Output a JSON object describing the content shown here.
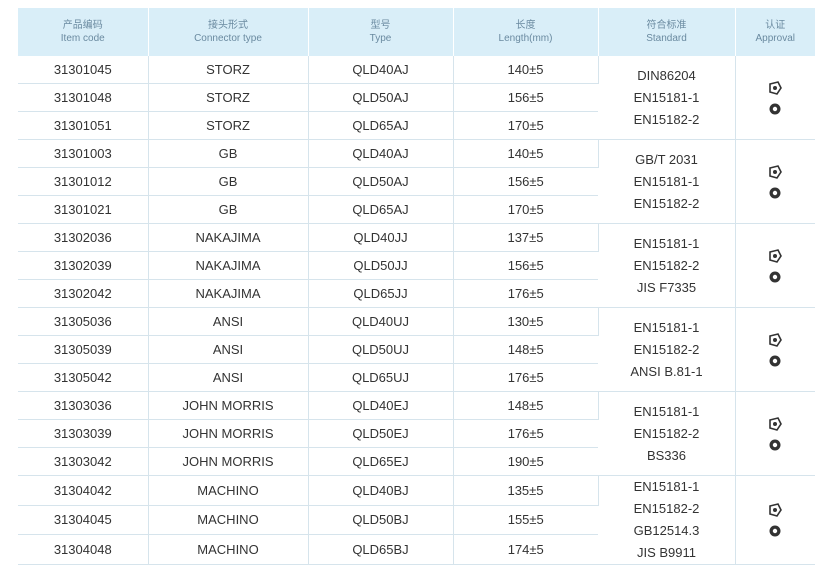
{
  "table": {
    "header": [
      {
        "zh": "产品编码",
        "en": "Item code"
      },
      {
        "zh": "接头形式",
        "en": "Connector type"
      },
      {
        "zh": "型号",
        "en": "Type"
      },
      {
        "zh": "长度",
        "en": "Length(mm)"
      },
      {
        "zh": "符合标准",
        "en": "Standard"
      },
      {
        "zh": "认证",
        "en": "Approval"
      }
    ],
    "rows": [
      [
        "31301045",
        "STORZ",
        "QLD40AJ",
        "140±5"
      ],
      [
        "31301048",
        "STORZ",
        "QLD50AJ",
        "156±5"
      ],
      [
        "31301051",
        "STORZ",
        "QLD65AJ",
        "170±5"
      ],
      [
        "31301003",
        "GB",
        "QLD40AJ",
        "140±5"
      ],
      [
        "31301012",
        "GB",
        "QLD50AJ",
        "156±5"
      ],
      [
        "31301021",
        "GB",
        "QLD65AJ",
        "170±5"
      ],
      [
        "31302036",
        "NAKAJIMA",
        "QLD40JJ",
        "137±5"
      ],
      [
        "31302039",
        "NAKAJIMA",
        "QLD50JJ",
        "156±5"
      ],
      [
        "31302042",
        "NAKAJIMA",
        "QLD65JJ",
        "176±5"
      ],
      [
        "31305036",
        "ANSI",
        "QLD40UJ",
        "130±5"
      ],
      [
        "31305039",
        "ANSI",
        "QLD50UJ",
        "148±5"
      ],
      [
        "31305042",
        "ANSI",
        "QLD65UJ",
        "176±5"
      ],
      [
        "31303036",
        "JOHN MORRIS",
        "QLD40EJ",
        "148±5"
      ],
      [
        "31303039",
        "JOHN MORRIS",
        "QLD50EJ",
        "176±5"
      ],
      [
        "31303042",
        "JOHN MORRIS",
        "QLD65EJ",
        "190±5"
      ],
      [
        "31304042",
        "MACHINO",
        "QLD40BJ",
        "135±5"
      ],
      [
        "31304045",
        "MACHINO",
        "QLD50BJ",
        "155±5"
      ],
      [
        "31304048",
        "MACHINO",
        "QLD65BJ",
        "174±5"
      ]
    ],
    "standards": [
      [
        "DIN86204",
        "EN15181-1",
        "EN15182-2"
      ],
      [
        "GB/T 2031",
        "EN15181-1",
        "EN15182-2"
      ],
      [
        "EN15181-1",
        "EN15182-2",
        "JIS F7335"
      ],
      [
        "EN15181-1",
        "EN15182-2",
        "ANSI B.81-1"
      ],
      [
        "EN15181-1",
        "EN15182-2",
        "BS336"
      ],
      [
        "EN15181-1",
        "EN15182-2",
        "GB12514.3",
        "JIS B9911"
      ]
    ]
  }
}
